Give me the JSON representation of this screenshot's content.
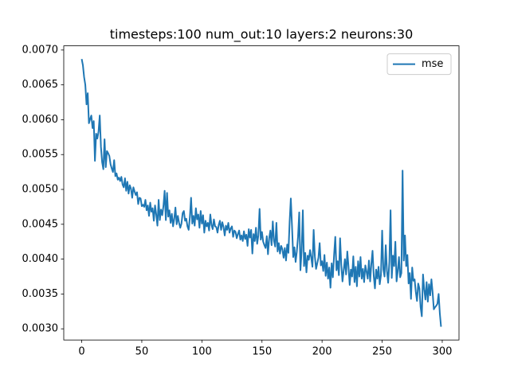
{
  "chart_data": {
    "type": "line",
    "title": "timesteps:100 num_out:10 layers:2 neurons:30",
    "x": [
      0,
      1,
      2,
      3,
      4,
      5,
      6,
      7,
      8,
      9,
      10,
      11,
      12,
      13,
      14,
      15,
      16,
      17,
      18,
      19,
      20,
      21,
      22,
      23,
      24,
      25,
      26,
      27,
      28,
      29,
      30,
      31,
      32,
      33,
      34,
      35,
      36,
      37,
      38,
      39,
      40,
      41,
      42,
      43,
      44,
      45,
      46,
      47,
      48,
      49,
      50,
      51,
      52,
      53,
      54,
      55,
      56,
      57,
      58,
      59,
      60,
      61,
      62,
      63,
      64,
      65,
      66,
      67,
      68,
      69,
      70,
      71,
      72,
      73,
      74,
      75,
      76,
      77,
      78,
      79,
      80,
      81,
      82,
      83,
      84,
      85,
      86,
      87,
      88,
      89,
      90,
      91,
      92,
      93,
      94,
      95,
      96,
      97,
      98,
      99,
      100,
      101,
      102,
      103,
      104,
      105,
      106,
      107,
      108,
      109,
      110,
      111,
      112,
      113,
      114,
      115,
      116,
      117,
      118,
      119,
      120,
      121,
      122,
      123,
      124,
      125,
      126,
      127,
      128,
      129,
      130,
      131,
      132,
      133,
      134,
      135,
      136,
      137,
      138,
      139,
      140,
      141,
      142,
      143,
      144,
      145,
      146,
      147,
      148,
      149,
      150,
      151,
      152,
      153,
      154,
      155,
      156,
      157,
      158,
      159,
      160,
      161,
      162,
      163,
      164,
      165,
      166,
      167,
      168,
      169,
      170,
      171,
      172,
      173,
      174,
      175,
      176,
      177,
      178,
      179,
      180,
      181,
      182,
      183,
      184,
      185,
      186,
      187,
      188,
      189,
      190,
      191,
      192,
      193,
      194,
      195,
      196,
      197,
      198,
      199,
      200,
      201,
      202,
      203,
      204,
      205,
      206,
      207,
      208,
      209,
      210,
      211,
      212,
      213,
      214,
      215,
      216,
      217,
      218,
      219,
      220,
      221,
      222,
      223,
      224,
      225,
      226,
      227,
      228,
      229,
      230,
      231,
      232,
      233,
      234,
      235,
      236,
      237,
      238,
      239,
      240,
      241,
      242,
      243,
      244,
      245,
      246,
      247,
      248,
      249,
      250,
      251,
      252,
      253,
      254,
      255,
      256,
      257,
      258,
      259,
      260,
      261,
      262,
      263,
      264,
      265,
      266,
      267,
      268,
      269,
      270,
      271,
      272,
      273,
      274,
      275,
      276,
      277,
      278,
      279,
      280,
      281,
      282,
      283,
      284,
      285,
      286,
      287,
      288,
      289,
      290,
      291,
      292,
      293,
      294,
      295,
      296,
      297,
      298,
      299
    ],
    "series": [
      {
        "name": "mse",
        "color": "#1f77b4",
        "values": [
          0.00687,
          0.00678,
          0.00661,
          0.0065,
          0.00622,
          0.00638,
          0.00595,
          0.00601,
          0.00606,
          0.00588,
          0.00598,
          0.00541,
          0.0058,
          0.00573,
          0.00583,
          0.00606,
          0.00561,
          0.00539,
          0.00529,
          0.00572,
          0.00532,
          0.00555,
          0.00552,
          0.00548,
          0.00536,
          0.0053,
          0.00525,
          0.00542,
          0.00519,
          0.00523,
          0.00514,
          0.00517,
          0.00512,
          0.00518,
          0.00507,
          0.00503,
          0.00516,
          0.00498,
          0.00511,
          0.00494,
          0.00506,
          0.00501,
          0.00488,
          0.00503,
          0.00497,
          0.00492,
          0.00496,
          0.00479,
          0.00488,
          0.00487,
          0.00476,
          0.00478,
          0.00475,
          0.00485,
          0.0047,
          0.00477,
          0.00462,
          0.00481,
          0.00468,
          0.00473,
          0.00455,
          0.00477,
          0.00464,
          0.00448,
          0.00485,
          0.00456,
          0.00471,
          0.00463,
          0.00476,
          0.00498,
          0.00456,
          0.00495,
          0.00461,
          0.0047,
          0.00452,
          0.00465,
          0.00447,
          0.00458,
          0.00474,
          0.0045,
          0.00462,
          0.00452,
          0.00445,
          0.00451,
          0.00466,
          0.00469,
          0.00455,
          0.00458,
          0.00447,
          0.00442,
          0.0046,
          0.00488,
          0.00451,
          0.00462,
          0.00448,
          0.00473,
          0.00457,
          0.00464,
          0.00445,
          0.00469,
          0.00451,
          0.00463,
          0.00438,
          0.00455,
          0.00447,
          0.00452,
          0.00441,
          0.00464,
          0.00449,
          0.00443,
          0.00457,
          0.00447,
          0.00446,
          0.00438,
          0.00449,
          0.00455,
          0.00442,
          0.00453,
          0.00446,
          0.00434,
          0.00448,
          0.00442,
          0.00452,
          0.00438,
          0.00444,
          0.00447,
          0.00432,
          0.00441,
          0.00439,
          0.0043,
          0.00436,
          0.00441,
          0.00428,
          0.00434,
          0.00426,
          0.0044,
          0.00429,
          0.00435,
          0.00419,
          0.00443,
          0.00431,
          0.00442,
          0.00408,
          0.00436,
          0.00426,
          0.00445,
          0.00422,
          0.00434,
          0.00472,
          0.00428,
          0.00439,
          0.00425,
          0.0042,
          0.00416,
          0.00433,
          0.00407,
          0.0043,
          0.00441,
          0.0042,
          0.00454,
          0.00426,
          0.00418,
          0.00452,
          0.00411,
          0.00423,
          0.00408,
          0.00419,
          0.00414,
          0.00402,
          0.00416,
          0.00398,
          0.00421,
          0.00409,
          0.00453,
          0.00487,
          0.00447,
          0.00403,
          0.00417,
          0.00396,
          0.00411,
          0.00432,
          0.00467,
          0.00384,
          0.00412,
          0.0047,
          0.0039,
          0.00409,
          0.00381,
          0.00405,
          0.00399,
          0.00413,
          0.00402,
          0.00389,
          0.00442,
          0.00404,
          0.00386,
          0.00394,
          0.00402,
          0.00423,
          0.00391,
          0.00397,
          0.00383,
          0.00406,
          0.00376,
          0.00395,
          0.00372,
          0.00388,
          0.00359,
          0.00394,
          0.00374,
          0.00406,
          0.00432,
          0.00384,
          0.00397,
          0.00377,
          0.0043,
          0.00392,
          0.00368,
          0.00384,
          0.004,
          0.00378,
          0.00411,
          0.00389,
          0.00363,
          0.00385,
          0.00375,
          0.00404,
          0.00367,
          0.00389,
          0.00361,
          0.00397,
          0.00375,
          0.00403,
          0.00372,
          0.00386,
          0.00367,
          0.00391,
          0.00382,
          0.00372,
          0.00398,
          0.00368,
          0.00393,
          0.00412,
          0.00376,
          0.00358,
          0.00385,
          0.00372,
          0.00389,
          0.00364,
          0.00377,
          0.00441,
          0.00385,
          0.00375,
          0.0042,
          0.00383,
          0.00366,
          0.00396,
          0.0047,
          0.00373,
          0.00405,
          0.0039,
          0.00425,
          0.00368,
          0.00383,
          0.00403,
          0.00374,
          0.0038,
          0.00527,
          0.00398,
          0.00434,
          0.0039,
          0.00406,
          0.00365,
          0.0038,
          0.00343,
          0.00388,
          0.00369,
          0.00371,
          0.00353,
          0.0034,
          0.00365,
          0.00358,
          0.00331,
          0.00318,
          0.00378,
          0.00357,
          0.00342,
          0.00367,
          0.00339,
          0.00364,
          0.00348,
          0.00371,
          0.00352,
          0.00328,
          0.00331,
          0.00333,
          0.00336,
          0.0035,
          0.00322,
          0.00303
        ]
      }
    ],
    "xlim": [
      -14.95,
      313.95
    ],
    "xticks": [
      0,
      50,
      100,
      150,
      200,
      250,
      300
    ],
    "ylim": [
      0.00284,
      0.00706
    ],
    "yticks": [
      {
        "value": 0.003,
        "label": "0.0030"
      },
      {
        "value": 0.0035,
        "label": "0.0035"
      },
      {
        "value": 0.004,
        "label": "0.0040"
      },
      {
        "value": 0.0045,
        "label": "0.0045"
      },
      {
        "value": 0.005,
        "label": "0.0050"
      },
      {
        "value": 0.0055,
        "label": "0.0055"
      },
      {
        "value": 0.006,
        "label": "0.0060"
      },
      {
        "value": 0.0065,
        "label": "0.0065"
      },
      {
        "value": 0.007,
        "label": "0.0070"
      }
    ],
    "grid": false,
    "legend": "upper right"
  }
}
